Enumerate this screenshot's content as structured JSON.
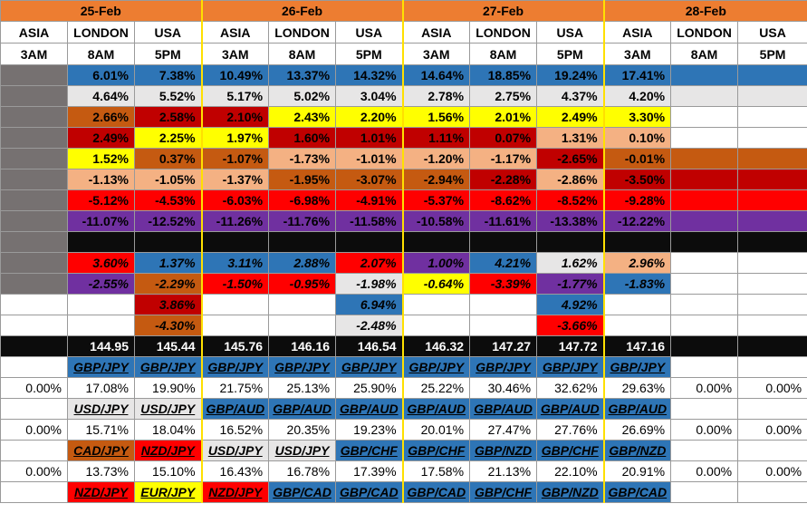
{
  "dates": [
    "25-Feb",
    "26-Feb",
    "27-Feb",
    "28-Feb"
  ],
  "sessions": [
    "ASIA",
    "LONDON",
    "USA",
    "ASIA",
    "LONDON",
    "USA",
    "ASIA",
    "LONDON",
    "USA",
    "ASIA",
    "LONDON",
    "USA"
  ],
  "times": [
    "3AM",
    "8AM",
    "5PM",
    "3AM",
    "8AM",
    "5PM",
    "3AM",
    "8AM",
    "5PM",
    "3AM",
    "8AM",
    "5PM"
  ],
  "grid_rows": [
    [
      "",
      "6.01%",
      "7.38%",
      "10.49%",
      "13.37%",
      "14.32%",
      "14.64%",
      "18.85%",
      "19.24%",
      "17.41%",
      "",
      ""
    ],
    [
      "",
      "4.64%",
      "5.52%",
      "5.17%",
      "5.02%",
      "3.04%",
      "2.78%",
      "2.75%",
      "4.37%",
      "4.20%",
      "",
      ""
    ],
    [
      "",
      "2.66%",
      "2.58%",
      "2.10%",
      "2.43%",
      "2.20%",
      "1.56%",
      "2.01%",
      "2.49%",
      "3.30%",
      "",
      ""
    ],
    [
      "",
      "2.49%",
      "2.25%",
      "1.97%",
      "1.60%",
      "1.01%",
      "1.11%",
      "0.07%",
      "1.31%",
      "0.10%",
      "",
      ""
    ],
    [
      "",
      "1.52%",
      "0.37%",
      "-1.07%",
      "-1.73%",
      "-1.01%",
      "-1.20%",
      "-1.17%",
      "-2.65%",
      "-0.01%",
      "",
      ""
    ],
    [
      "",
      "-1.13%",
      "-1.05%",
      "-1.37%",
      "-1.95%",
      "-3.07%",
      "-2.94%",
      "-2.28%",
      "-2.86%",
      "-3.50%",
      "",
      ""
    ],
    [
      "",
      "-5.12%",
      "-4.53%",
      "-6.03%",
      "-6.98%",
      "-4.91%",
      "-5.37%",
      "-8.62%",
      "-8.52%",
      "-9.28%",
      "",
      ""
    ],
    [
      "",
      "-11.07%",
      "-12.52%",
      "-11.26%",
      "-11.76%",
      "-11.58%",
      "-10.58%",
      "-11.61%",
      "-13.38%",
      "-12.22%",
      "",
      ""
    ],
    [
      "",
      "",
      "",
      "",
      "",
      "",
      "",
      "",
      "",
      "",
      "",
      ""
    ]
  ],
  "extra_rows": [
    [
      "",
      "3.60%",
      "1.37%",
      "3.11%",
      "2.88%",
      "2.07%",
      "1.00%",
      "4.21%",
      "1.62%",
      "2.96%",
      "",
      ""
    ],
    [
      "",
      "-2.55%",
      "-2.29%",
      "-1.50%",
      "-0.95%",
      "-1.98%",
      "-0.64%",
      "-3.39%",
      "-1.77%",
      "-1.83%",
      "",
      ""
    ],
    [
      "",
      "",
      "3.86%",
      "",
      "",
      "6.94%",
      "",
      "",
      "4.92%",
      "",
      "",
      ""
    ],
    [
      "",
      "",
      "-4.30%",
      "",
      "",
      "-2.48%",
      "",
      "",
      "-3.66%",
      "",
      "",
      ""
    ]
  ],
  "price_row": [
    "",
    "144.95",
    "145.44",
    "145.76",
    "146.16",
    "146.54",
    "146.32",
    "147.27",
    "147.72",
    "147.16",
    "",
    ""
  ],
  "pair_blocks": [
    {
      "pairs": [
        "",
        "GBP/JPY",
        "GBP/JPY",
        "GBP/JPY",
        "GBP/JPY",
        "GBP/JPY",
        "GBP/JPY",
        "GBP/JPY",
        "GBP/JPY",
        "GBP/JPY",
        "",
        ""
      ],
      "values": [
        "0.00%",
        "17.08%",
        "19.90%",
        "21.75%",
        "25.13%",
        "25.90%",
        "25.22%",
        "30.46%",
        "32.62%",
        "29.63%",
        "0.00%",
        "0.00%"
      ]
    },
    {
      "pairs": [
        "",
        "USD/JPY",
        "USD/JPY",
        "GBP/AUD",
        "GBP/AUD",
        "GBP/AUD",
        "GBP/AUD",
        "GBP/AUD",
        "GBP/AUD",
        "GBP/AUD",
        "",
        ""
      ],
      "values": [
        "0.00%",
        "15.71%",
        "18.04%",
        "16.52%",
        "20.35%",
        "19.23%",
        "20.01%",
        "27.47%",
        "27.76%",
        "26.69%",
        "0.00%",
        "0.00%"
      ]
    },
    {
      "pairs": [
        "",
        "CAD/JPY",
        "NZD/JPY",
        "USD/JPY",
        "USD/JPY",
        "GBP/CHF",
        "GBP/CHF",
        "GBP/NZD",
        "GBP/CHF",
        "GBP/NZD",
        "",
        ""
      ],
      "values": [
        "0.00%",
        "13.73%",
        "15.10%",
        "16.43%",
        "16.78%",
        "17.39%",
        "17.58%",
        "21.13%",
        "22.10%",
        "20.91%",
        "0.00%",
        "0.00%"
      ]
    },
    {
      "pairs": [
        "",
        "NZD/JPY",
        "EUR/JPY",
        "NZD/JPY",
        "GBP/CAD",
        "GBP/CAD",
        "GBP/CAD",
        "GBP/CHF",
        "GBP/NZD",
        "GBP/CAD",
        "",
        ""
      ],
      "values": []
    }
  ],
  "colors": {
    "header_orange": "#ed7d31",
    "gray": "#767171",
    "blue": "#2e75b6",
    "light_gray": "#e7e6e6",
    "orange": "#c55a11",
    "yellow": "#ffff00",
    "red": "#ff0000",
    "dark_red": "#c00000",
    "peach": "#f4b183",
    "purple": "#7030a0",
    "black": "#0c0c0c",
    "separator_yellow": "#ffe000"
  }
}
